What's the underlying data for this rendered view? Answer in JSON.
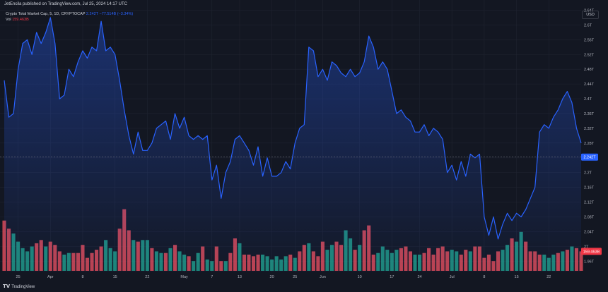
{
  "header": {
    "published_text": "JetEncila published on TradingView.com, Jul 25, 2024 14:17 UTC"
  },
  "legend": {
    "title": "Crypto Total Market Cap, 5, 1D, CRYPTOCAP",
    "last_value": "2.242T",
    "change": "−77.514B (−3.34%)",
    "vol_label": "Vol",
    "vol_value": "159.463B"
  },
  "currency_button": "USD",
  "brand": "TradingView",
  "colors": {
    "background": "#131722",
    "line": "#2962ff",
    "volume_up": "#22ab94",
    "volume_down": "#f7525f",
    "grid": "#1f2330",
    "price_tag": "#2962ff",
    "volume_tag": "#f23645"
  },
  "chart_data": {
    "type": "line",
    "title": "Crypto Total Market Cap, 5, 1D, CRYPTOCAP",
    "xlabel": "",
    "ylabel": "",
    "ylim": [
      1.93,
      2.66
    ],
    "y_ticks": [
      1.96,
      2.0,
      2.04,
      2.08,
      2.12,
      2.16,
      2.2,
      2.24,
      2.28,
      2.32,
      2.36,
      2.4,
      2.44,
      2.48,
      2.52,
      2.56,
      2.6,
      2.64
    ],
    "y_tick_labels": [
      "1.96T",
      "2T",
      "2.04T",
      "2.08T",
      "2.12T",
      "2.16T",
      "2.2T",
      "2.24T",
      "2.28T",
      "2.32T",
      "2.36T",
      "2.4T",
      "2.44T",
      "2.48T",
      "2.52T",
      "2.56T",
      "2.6T",
      "2.64T"
    ],
    "x_tick_labels": [
      {
        "day": 3,
        "label": "25"
      },
      {
        "day": 10,
        "label": "Apr"
      },
      {
        "day": 17,
        "label": "8"
      },
      {
        "day": 24,
        "label": "15"
      },
      {
        "day": 31,
        "label": "22"
      },
      {
        "day": 39,
        "label": "May"
      },
      {
        "day": 45,
        "label": "7"
      },
      {
        "day": 51,
        "label": "13"
      },
      {
        "day": 58,
        "label": "20"
      },
      {
        "day": 63,
        "label": "25"
      },
      {
        "day": 69,
        "label": "Jun"
      },
      {
        "day": 77,
        "label": "10"
      },
      {
        "day": 84,
        "label": "17"
      },
      {
        "day": 90,
        "label": "24"
      },
      {
        "day": 97,
        "label": "Jul"
      },
      {
        "day": 104,
        "label": "8"
      },
      {
        "day": 111,
        "label": "15"
      },
      {
        "day": 118,
        "label": "22"
      }
    ],
    "series": [
      {
        "values": [
          2.45,
          2.35,
          2.36,
          2.48,
          2.55,
          2.56,
          2.52,
          2.58,
          2.55,
          2.58,
          2.62,
          2.55,
          2.4,
          2.41,
          2.48,
          2.46,
          2.5,
          2.53,
          2.51,
          2.54,
          2.53,
          2.61,
          2.53,
          2.54,
          2.52,
          2.45,
          2.37,
          2.3,
          2.25,
          2.31,
          2.26,
          2.26,
          2.28,
          2.32,
          2.33,
          2.34,
          2.29,
          2.36,
          2.32,
          2.35,
          2.3,
          2.29,
          2.3,
          2.29,
          2.3,
          2.18,
          2.22,
          2.13,
          2.2,
          2.23,
          2.29,
          2.3,
          2.28,
          2.26,
          2.22,
          2.27,
          2.19,
          2.24,
          2.19,
          2.19,
          2.2,
          2.23,
          2.21,
          2.28,
          2.32,
          2.33,
          2.54,
          2.53,
          2.46,
          2.48,
          2.45,
          2.5,
          2.49,
          2.47,
          2.46,
          2.48,
          2.46,
          2.47,
          2.5,
          2.57,
          2.54,
          2.48,
          2.5,
          2.48,
          2.42,
          2.36,
          2.37,
          2.35,
          2.34,
          2.31,
          2.31,
          2.33,
          2.3,
          2.32,
          2.31,
          2.29,
          2.2,
          2.22,
          2.18,
          2.23,
          2.19,
          2.25,
          2.24,
          2.25,
          2.08,
          2.03,
          2.08,
          2.02,
          2.06,
          2.09,
          2.07,
          2.09,
          2.08,
          2.1,
          2.13,
          2.16,
          2.31,
          2.33,
          2.32,
          2.35,
          2.37,
          2.4,
          2.42,
          2.39,
          2.32,
          2.28
        ]
      },
      {
        "name": "Vol",
        "values": [
          3.1,
          2.6,
          2.3,
          1.8,
          1.4,
          1.2,
          1.5,
          1.7,
          1.9,
          1.5,
          1.8,
          1.6,
          1.2,
          1.0,
          1.1,
          1.1,
          1.1,
          1.6,
          0.8,
          1.1,
          1.3,
          1.5,
          1.9,
          1.4,
          1.2,
          2.6,
          3.8,
          2.5,
          1.9,
          1.8,
          1.9,
          1.9,
          1.4,
          1.2,
          1.1,
          1.1,
          1.4,
          1.6,
          1.2,
          1.0,
          0.9,
          0.6,
          1.1,
          1.5,
          0.7,
          0.6,
          1.5,
          0.6,
          0.6,
          1.1,
          2.0,
          1.7,
          1.0,
          1.0,
          0.9,
          1.0,
          1.0,
          0.9,
          0.7,
          0.9,
          0.7,
          0.9,
          1.0,
          0.8,
          1.2,
          1.6,
          1.7,
          1.2,
          0.9,
          1.8,
          1.3,
          1.6,
          1.8,
          1.6,
          2.5,
          2.0,
          1.3,
          1.6,
          2.5,
          2.8,
          1.0,
          1.1,
          1.5,
          1.3,
          1.1,
          1.3,
          1.4,
          1.5,
          1.2,
          1.0,
          1.0,
          1.1,
          1.4,
          1.0,
          1.4,
          1.5,
          1.2,
          1.3,
          1.2,
          1.0,
          1.3,
          1.2,
          1.5,
          1.5,
          0.8,
          1.0,
          0.6,
          1.2,
          1.3,
          1.6,
          2.0,
          1.8,
          2.4,
          1.8,
          1.2,
          1.2,
          1.0,
          1.0,
          0.8,
          1.0,
          1.1,
          1.2,
          1.3,
          1.5,
          1.4,
          1.2
        ],
        "up": [
          0,
          0,
          1,
          1,
          1,
          1,
          1,
          0,
          0,
          1,
          0,
          0,
          0,
          1,
          1,
          0,
          0,
          0,
          0,
          0,
          0,
          0,
          1,
          1,
          1,
          0,
          0,
          0,
          1,
          0,
          1,
          1,
          0,
          1,
          1,
          0,
          1,
          0,
          1,
          1,
          0,
          1,
          1,
          0,
          1,
          1,
          0,
          0,
          1,
          0,
          0,
          1,
          0,
          0,
          0,
          0,
          1,
          1,
          1,
          1,
          1,
          1,
          0,
          1,
          0,
          0,
          1,
          0,
          0,
          0,
          1,
          1,
          0,
          0,
          1,
          1,
          0,
          1,
          0,
          0,
          0,
          1,
          1,
          1,
          1,
          1,
          0,
          0,
          0,
          1,
          1,
          0,
          0,
          0,
          0,
          0,
          0,
          1,
          1,
          0,
          0,
          1,
          0,
          0,
          0,
          0,
          0,
          0,
          1,
          1,
          0,
          1,
          1,
          0,
          0,
          0,
          0,
          1,
          1,
          1,
          0,
          1,
          0,
          1,
          0,
          0
        ]
      }
    ],
    "last_price_label": "2.242T",
    "last_volume_label": "159.463B",
    "grid": true
  }
}
